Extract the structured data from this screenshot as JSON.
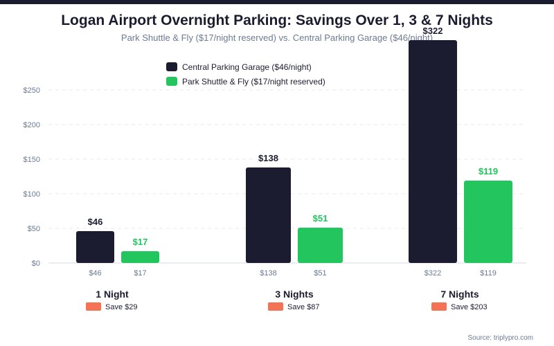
{
  "chart_data": {
    "type": "bar",
    "title": "Logan Airport Overnight Parking: Savings Over 1, 3 & 7 Nights",
    "subtitle": "Park Shuttle & Fly ($17/night reserved) vs. Central Parking Garage ($46/night)",
    "xlabel": "",
    "ylabel": "",
    "ylim": [
      0,
      250
    ],
    "yticks": [
      0,
      50,
      100,
      150,
      200,
      250
    ],
    "ytick_labels": [
      "$0",
      "$50",
      "$100",
      "$150",
      "$200",
      "$250"
    ],
    "grid": true,
    "legend_position": "top-center",
    "categories": [
      "1 Night",
      "3 Nights",
      "7 Nights"
    ],
    "series": [
      {
        "name": "Central Parking Garage ($46/night)",
        "color": "#1b1c30",
        "label_color": "#1b1c30",
        "values": [
          46,
          138,
          322
        ],
        "labels": [
          "$46",
          "$138",
          "$322"
        ]
      },
      {
        "name": "Park Shuttle & Fly ($17/night reserved)",
        "color": "#22c55e",
        "label_color": "#22c55e",
        "values": [
          17,
          51,
          119
        ],
        "labels": [
          "$17",
          "$51",
          "$119"
        ]
      }
    ],
    "savings": [
      {
        "label": "Save $29",
        "value": 29
      },
      {
        "label": "Save $87",
        "value": 87
      },
      {
        "label": "Save $203",
        "value": 203
      }
    ],
    "savings_color": "#f47255",
    "source": "Source: triplypro.com"
  }
}
